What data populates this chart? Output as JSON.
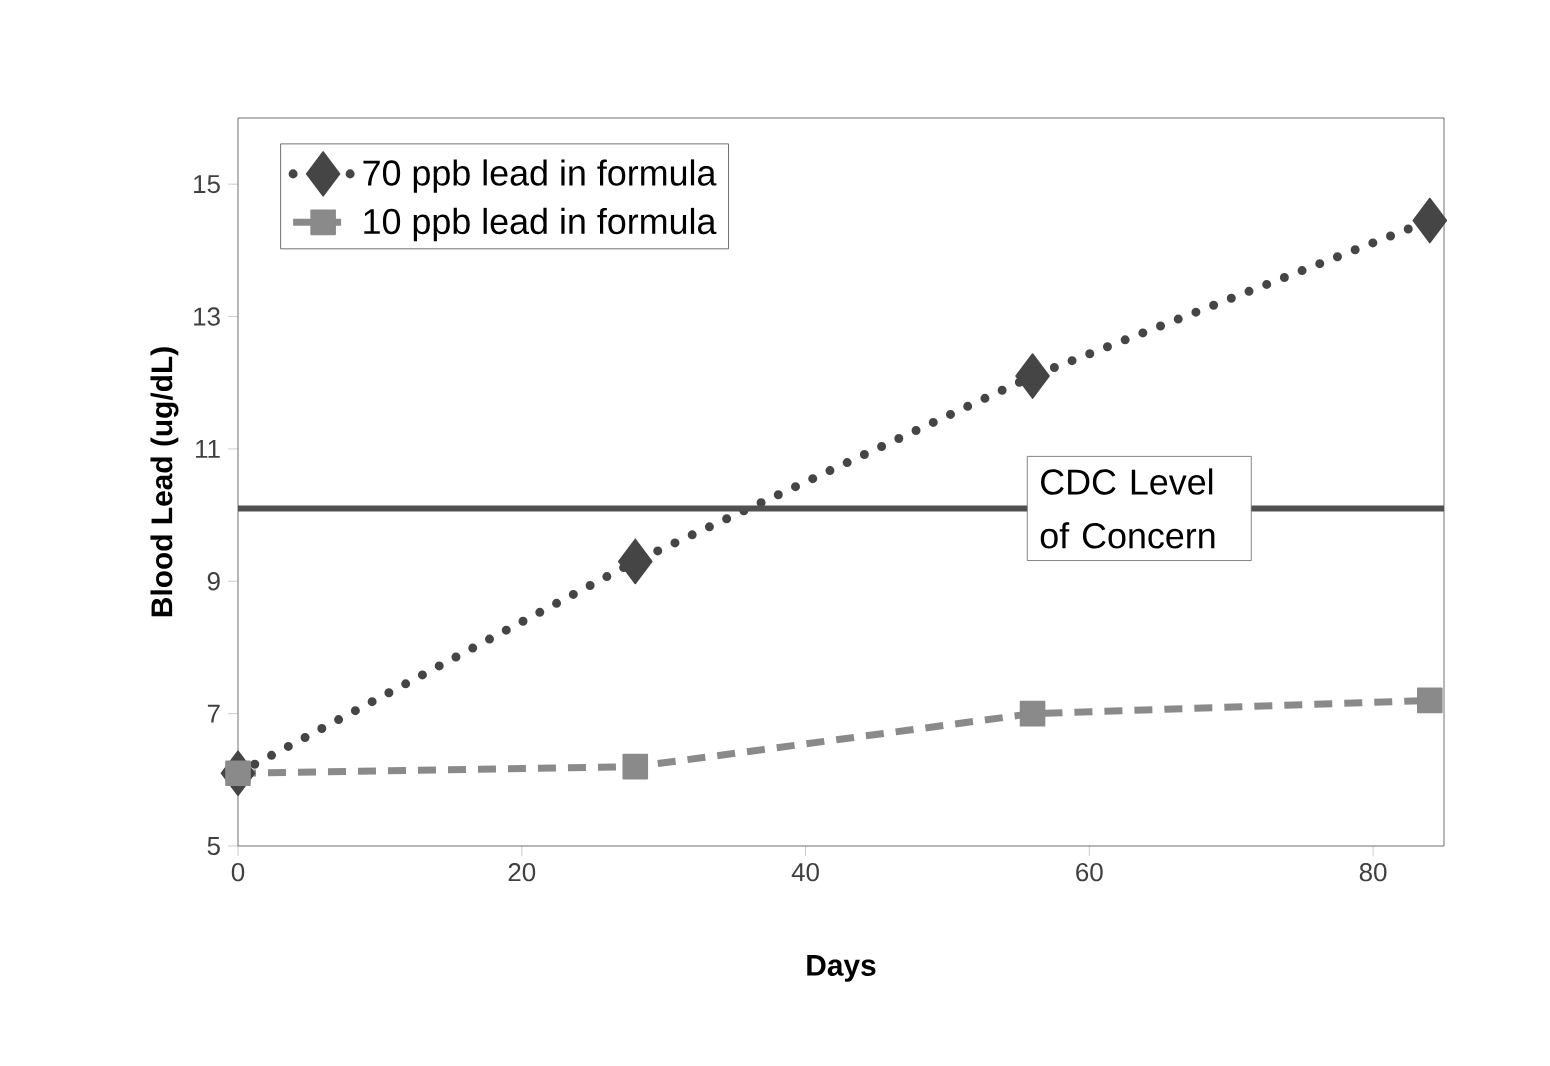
{
  "chart_data": {
    "type": "line",
    "xlabel": "Days",
    "ylabel": "Blood Lead (ug/dL)",
    "x": [
      0,
      28,
      56,
      84
    ],
    "xlim": [
      0,
      85
    ],
    "ylim": [
      5,
      16
    ],
    "xticks": [
      0,
      20,
      40,
      60,
      80
    ],
    "yticks": [
      5,
      7,
      9,
      11,
      13,
      15
    ],
    "legend": "top left",
    "grid": false,
    "series": [
      {
        "name": "70 ppb lead in formula",
        "color": "#454545",
        "values": [
          6.1,
          9.3,
          12.1,
          14.45
        ],
        "marker": "diamond",
        "line_style": "dotted"
      },
      {
        "name": "10 ppb lead in formula",
        "color": "#8a8a8a",
        "values": [
          6.1,
          6.2,
          7.0,
          7.2
        ],
        "marker": "square",
        "line_style": "dashed"
      }
    ],
    "ref_lines": [
      {
        "axis": "y",
        "value": 10.1,
        "label": "CDC Level of Concern",
        "color": "#505050"
      }
    ]
  }
}
